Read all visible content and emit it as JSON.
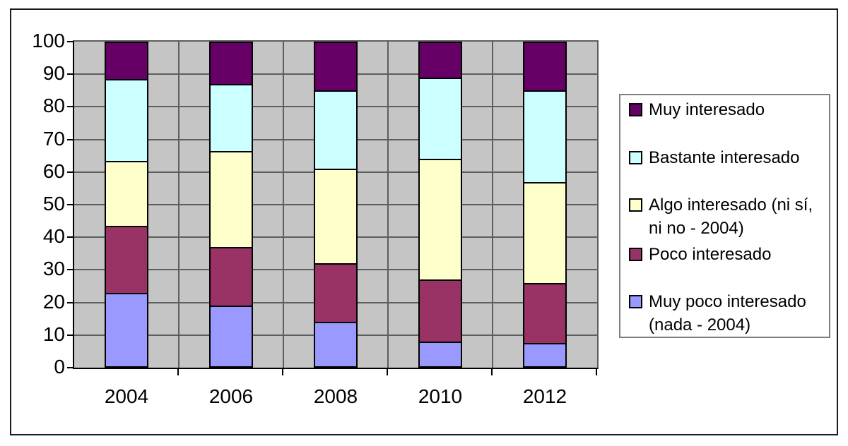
{
  "chart_data": {
    "type": "bar",
    "subtype": "stacked-column",
    "stacked_total": 100,
    "title": "",
    "xlabel": "",
    "ylabel": "",
    "categories": [
      "2004",
      "2006",
      "2008",
      "2010",
      "2012"
    ],
    "series": [
      {
        "name": "Muy poco interesado (nada - 2004)",
        "legend_lines": [
          "Muy poco interesado",
          "(nada - 2004)"
        ],
        "color": "#9999FF",
        "values": [
          23,
          19,
          14,
          8,
          7.5
        ]
      },
      {
        "name": "Poco interesado",
        "legend_lines": [
          "Poco interesado"
        ],
        "color": "#993366",
        "values": [
          20.5,
          18,
          18,
          19,
          18.5
        ]
      },
      {
        "name": "Algo interesado (ni sí, ni no - 2004)",
        "legend_lines": [
          "Algo interesado (ni sí,",
          "ni no - 2004)"
        ],
        "color": "#FFFFCC",
        "values": [
          20,
          29.5,
          29,
          37,
          31
        ]
      },
      {
        "name": "Bastante interesado",
        "legend_lines": [
          "Bastante interesado"
        ],
        "color": "#CCFFFF",
        "values": [
          25,
          20.5,
          24,
          25,
          28
        ]
      },
      {
        "name": "Muy interesado",
        "legend_lines": [
          "Muy interesado"
        ],
        "color": "#660066",
        "values": [
          11.5,
          13,
          15,
          11,
          15
        ]
      }
    ],
    "legend_order_top_to_bottom": [
      4,
      3,
      2,
      1,
      0
    ],
    "legend_position": "right",
    "grid": true,
    "y_axis": {
      "min": 0,
      "max": 100,
      "tick_step": 10,
      "tick_labels": [
        "0",
        "10",
        "20",
        "30",
        "40",
        "50",
        "60",
        "70",
        "80",
        "90",
        "100"
      ]
    },
    "colors": {
      "plot_background": "#C5C5C5",
      "gridline": "#5E5E5E",
      "axis_line": "#000000",
      "bar_border": "#000000",
      "legend_border": "#808080",
      "legend_background": "#FFFFFF",
      "outer_border": "#1A1A1A",
      "text": "#000000"
    }
  }
}
